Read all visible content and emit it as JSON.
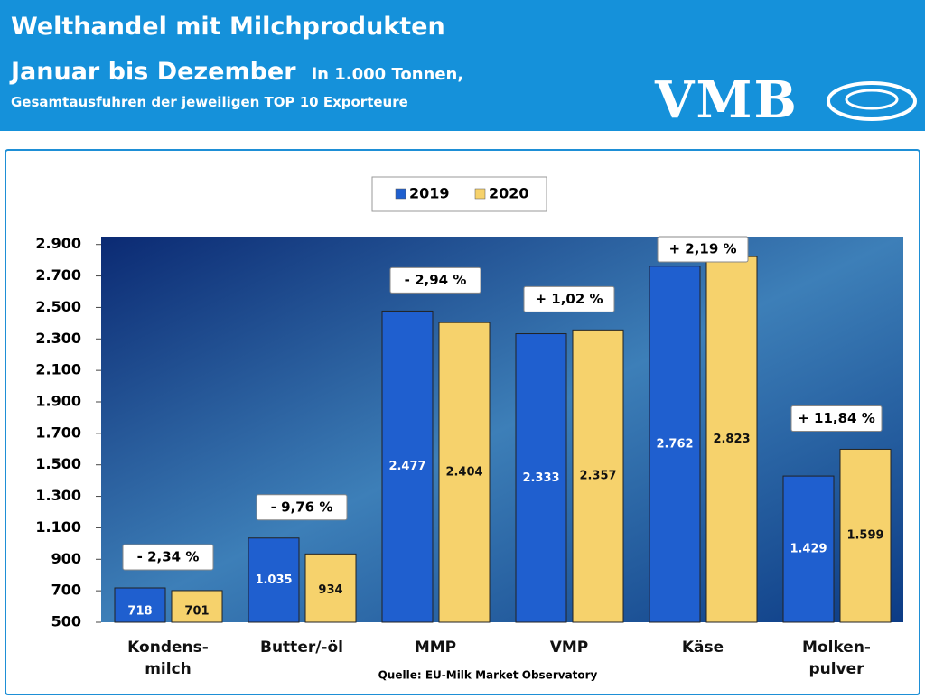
{
  "header": {
    "title": "Welthandel mit Milchprodukten",
    "subtitle": "Januar bis Dezember",
    "unit": "in 1.000 Tonnen,",
    "note": "Gesamtausfuhren der jeweiligen TOP 10 Exporteure",
    "logo": "VMB"
  },
  "chart_data": {
    "type": "bar",
    "categories": [
      "Kondens-\nmilch",
      "Butter/-öl",
      "MMP",
      "VMP",
      "Käse",
      "Molken-\npulver"
    ],
    "series": [
      {
        "name": "2019",
        "color": "#1f5fcf",
        "values": [
          718,
          1035,
          2477,
          2333,
          2762,
          1429
        ],
        "value_labels": [
          "718",
          "1.035",
          "2.477",
          "2.333",
          "2.762",
          "1.429"
        ]
      },
      {
        "name": "2020",
        "color": "#f6d26c",
        "values": [
          701,
          934,
          2404,
          2357,
          2823,
          1599
        ],
        "value_labels": [
          "701",
          "934",
          "2.404",
          "2.357",
          "2.823",
          "1.599"
        ]
      }
    ],
    "annotations": [
      "- 2,34 %",
      "- 9,76 %",
      "- 2,94 %",
      "+ 1,02 %",
      "+ 2,19 %",
      "+ 11,84 %"
    ],
    "ylim": [
      500,
      2950
    ],
    "yticks": [
      500,
      700,
      900,
      {
        "value": 1100,
        "label": "1.100"
      },
      {
        "value": 1300,
        "label": "1.300"
      },
      {
        "value": 1500,
        "label": "1.500"
      },
      {
        "value": 1700,
        "label": "1.700"
      },
      {
        "value": 1900,
        "label": "1.900"
      },
      {
        "value": 2100,
        "label": "2.100"
      },
      {
        "value": 2300,
        "label": "2.300"
      },
      {
        "value": 2500,
        "label": "2.500"
      },
      {
        "value": 2700,
        "label": "2.700"
      },
      {
        "value": 2900,
        "label": "2.900"
      }
    ],
    "source": "Quelle: EU-Milk Market Observatory"
  }
}
